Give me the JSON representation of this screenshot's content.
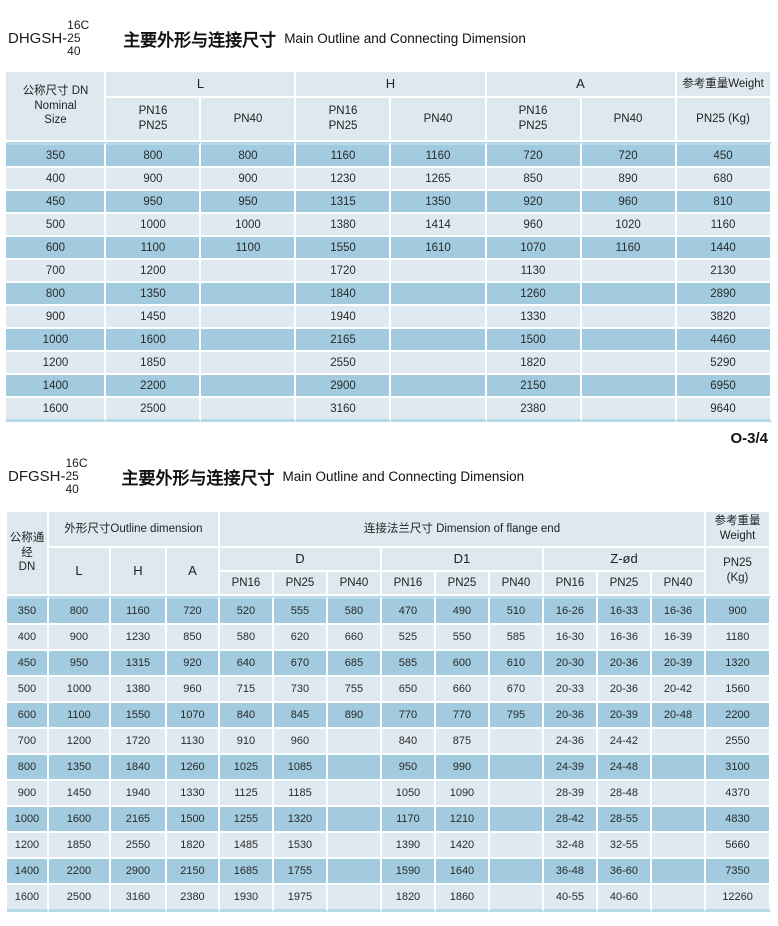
{
  "page": {
    "marker": "O-3/4",
    "colors": {
      "row_dark": "#a2cbdf",
      "row_light": "#dfe9f1",
      "header_bg": "#dde8ef",
      "separator_line": "#b7dae9"
    }
  },
  "section1": {
    "model": "DHGSH-",
    "pressure_ratings": "16C\n25\n40",
    "title_zh": "主要外形与连接尺寸",
    "title_en": "Main Outline and Connecting Dimension"
  },
  "table1": {
    "header": {
      "dn": "公称尺寸 DN\nNominal\nSize",
      "l": "L",
      "h": "H",
      "a": "A",
      "pn_high": "PN16\nPN25",
      "pn40": "PN40",
      "weight": "参考重量Weight",
      "weight_sub": "PN25 (Kg)"
    },
    "rows": [
      [
        "350",
        "800",
        "800",
        "1160",
        "1160",
        "720",
        "720",
        "450"
      ],
      [
        "400",
        "900",
        "900",
        "1230",
        "1265",
        "850",
        "890",
        "680"
      ],
      [
        "450",
        "950",
        "950",
        "1315",
        "1350",
        "920",
        "960",
        "810"
      ],
      [
        "500",
        "1000",
        "1000",
        "1380",
        "1414",
        "960",
        "1020",
        "1160"
      ],
      [
        "600",
        "1100",
        "1100",
        "1550",
        "1610",
        "1070",
        "1160",
        "1440"
      ],
      [
        "700",
        "1200",
        "",
        "1720",
        "",
        "1130",
        "",
        "2130"
      ],
      [
        "800",
        "1350",
        "",
        "1840",
        "",
        "1260",
        "",
        "2890"
      ],
      [
        "900",
        "1450",
        "",
        "1940",
        "",
        "1330",
        "",
        "3820"
      ],
      [
        "1000",
        "1600",
        "",
        "2165",
        "",
        "1500",
        "",
        "4460"
      ],
      [
        "1200",
        "1850",
        "",
        "2550",
        "",
        "1820",
        "",
        "5290"
      ],
      [
        "1400",
        "2200",
        "",
        "2900",
        "",
        "2150",
        "",
        "6950"
      ],
      [
        "1600",
        "2500",
        "",
        "3160",
        "",
        "2380",
        "",
        "9640"
      ]
    ]
  },
  "section2": {
    "model": "DFGSH-",
    "pressure_ratings": "16C\n25\n40",
    "title_zh": "主要外形与连接尺寸",
    "title_en": "Main Outline and Connecting Dimension"
  },
  "table2": {
    "header": {
      "dn": "公称通经\nDN",
      "outline": "外形尺寸Outline dimension",
      "l": "L",
      "h": "H",
      "a": "A",
      "flange": "连接法兰尺寸 Dimension of flange end",
      "d": "D",
      "d1": "D1",
      "zod": "Z-ød",
      "pn16": "PN16",
      "pn25": "PN25",
      "pn40": "PN40",
      "weight": "参考重量\nWeight",
      "weight_sub": "PN25\n(Kg)"
    },
    "rows": [
      [
        "350",
        "800",
        "1160",
        "720",
        "520",
        "555",
        "580",
        "470",
        "490",
        "510",
        "16-26",
        "16-33",
        "16-36",
        "900"
      ],
      [
        "400",
        "900",
        "1230",
        "850",
        "580",
        "620",
        "660",
        "525",
        "550",
        "585",
        "16-30",
        "16-36",
        "16-39",
        "1180"
      ],
      [
        "450",
        "950",
        "1315",
        "920",
        "640",
        "670",
        "685",
        "585",
        "600",
        "610",
        "20-30",
        "20-36",
        "20-39",
        "1320"
      ],
      [
        "500",
        "1000",
        "1380",
        "960",
        "715",
        "730",
        "755",
        "650",
        "660",
        "670",
        "20-33",
        "20-36",
        "20-42",
        "1560"
      ],
      [
        "600",
        "1100",
        "1550",
        "1070",
        "840",
        "845",
        "890",
        "770",
        "770",
        "795",
        "20-36",
        "20-39",
        "20-48",
        "2200"
      ],
      [
        "700",
        "1200",
        "1720",
        "1130",
        "910",
        "960",
        "",
        "840",
        "875",
        "",
        "24-36",
        "24-42",
        "",
        "2550"
      ],
      [
        "800",
        "1350",
        "1840",
        "1260",
        "1025",
        "1085",
        "",
        "950",
        "990",
        "",
        "24-39",
        "24-48",
        "",
        "3100"
      ],
      [
        "900",
        "1450",
        "1940",
        "1330",
        "1125",
        "1185",
        "",
        "1050",
        "1090",
        "",
        "28-39",
        "28-48",
        "",
        "4370"
      ],
      [
        "1000",
        "1600",
        "2165",
        "1500",
        "1255",
        "1320",
        "",
        "1170",
        "1210",
        "",
        "28-42",
        "28-55",
        "",
        "4830"
      ],
      [
        "1200",
        "1850",
        "2550",
        "1820",
        "1485",
        "1530",
        "",
        "1390",
        "1420",
        "",
        "32-48",
        "32-55",
        "",
        "5660"
      ],
      [
        "1400",
        "2200",
        "2900",
        "2150",
        "1685",
        "1755",
        "",
        "1590",
        "1640",
        "",
        "36-48",
        "36-60",
        "",
        "7350"
      ],
      [
        "1600",
        "2500",
        "3160",
        "2380",
        "1930",
        "1975",
        "",
        "1820",
        "1860",
        "",
        "40-55",
        "40-60",
        "",
        "12260"
      ]
    ]
  }
}
